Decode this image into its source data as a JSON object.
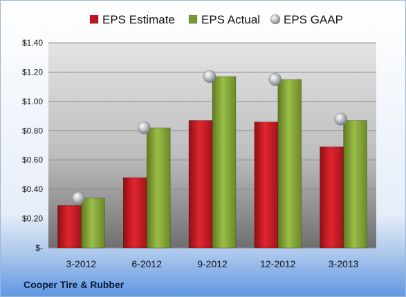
{
  "chart_data": {
    "type": "bar",
    "categories": [
      "3-2012",
      "6-2012",
      "9-2012",
      "12-2012",
      "3-2013"
    ],
    "series": [
      {
        "name": "EPS Estimate",
        "kind": "bar",
        "color": "#c0151e",
        "values": [
          0.29,
          0.48,
          0.87,
          0.86,
          0.69
        ]
      },
      {
        "name": "EPS Actual",
        "kind": "bar",
        "color": "#7a9a2e",
        "values": [
          0.34,
          0.82,
          1.17,
          1.15,
          0.87
        ]
      },
      {
        "name": "EPS GAAP",
        "kind": "marker",
        "color": "#b8bcc2",
        "values": [
          0.34,
          0.82,
          1.17,
          1.15,
          0.88
        ]
      }
    ],
    "ylim": [
      0,
      1.4
    ],
    "yticks": [
      0,
      0.2,
      0.4,
      0.6,
      0.8,
      1.0,
      1.2,
      1.4
    ],
    "ytick_labels": [
      "$-",
      "$0.20",
      "$0.40",
      "$0.60",
      "$0.80",
      "$1.00",
      "$1.20",
      "$1.40"
    ],
    "grid": true,
    "legend_position": "top-center",
    "footer": "Cooper Tire & Rubber"
  }
}
